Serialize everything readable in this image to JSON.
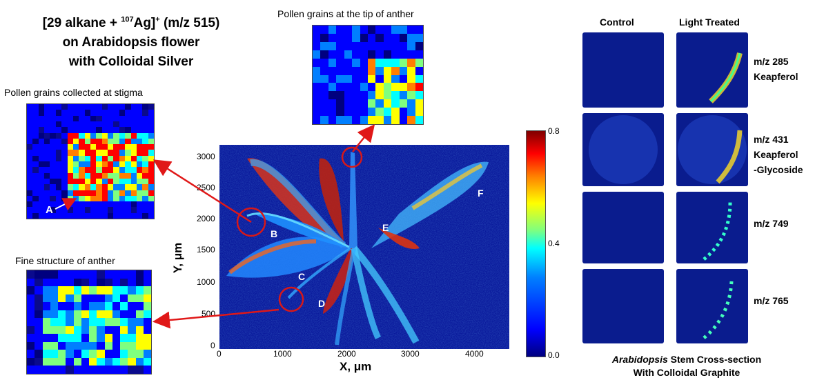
{
  "title": {
    "line1_pre": "[29 alkane + ",
    "line1_sup1": "107",
    "line1_mid": "Ag]",
    "line1_sup2": "+",
    "line1_post": " (m/z 515)",
    "line2": "on Arabidopsis flower",
    "line3": "with Colloidal Silver"
  },
  "insets": {
    "stigma": "Pollen grains collected at stigma",
    "stigma_marker": "A",
    "anther_tip": "Pollen grains at the tip of anther",
    "fine_structure": "Fine structure of anther"
  },
  "main_map": {
    "x_axis_title": "X, μm",
    "y_axis_title": "Y, μm",
    "x_ticks": [
      "0",
      "1000",
      "2000",
      "3000",
      "4000"
    ],
    "y_ticks": [
      "0",
      "500",
      "1000",
      "1500",
      "2000",
      "2500",
      "3000"
    ],
    "region_labels": [
      "B",
      "C",
      "D",
      "E",
      "F"
    ]
  },
  "colorbar": {
    "ticks": [
      "0.8",
      "0.4",
      "0.0"
    ],
    "range": [
      0.0,
      0.8
    ]
  },
  "right": {
    "col_control": "Control",
    "col_treated": "Light Treated",
    "rows": [
      {
        "label_lines": [
          "m/z 285",
          "Keapferol"
        ]
      },
      {
        "label_lines": [
          "m/z 431",
          "Keapferol",
          "-Glycoside"
        ]
      },
      {
        "label_lines": [
          "m/z 749"
        ]
      },
      {
        "label_lines": [
          "m/z 765"
        ]
      }
    ],
    "footer_italic": "Arabidopsis",
    "footer_line1_rest": " Stem Cross-section",
    "footer_line2": "With Colloidal Graphite"
  },
  "colors": {
    "arrow": "#e01818",
    "circle": "#d81818",
    "map_background": "#0a1a9c"
  }
}
